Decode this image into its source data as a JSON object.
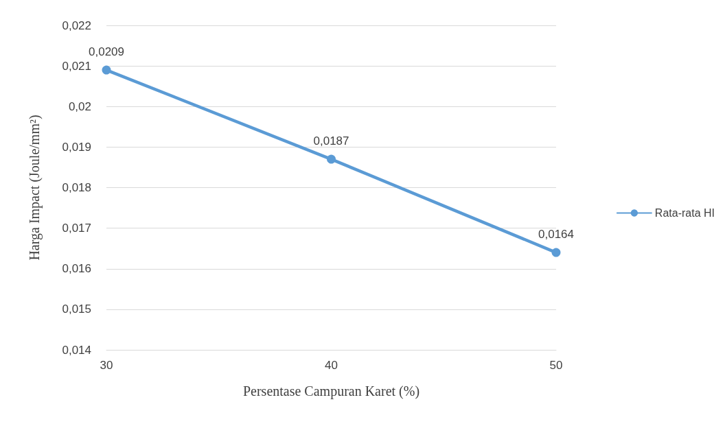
{
  "chart_data": {
    "type": "line",
    "xlabel": "Persentase Campuran Karet (%)",
    "ylabel": "Harga Impact (Joule/mm²)",
    "categories": [
      "30",
      "40",
      "50"
    ],
    "series": [
      {
        "name": "Rata-rata HI",
        "color": "#5b9bd5",
        "values": [
          0.0209,
          0.0187,
          0.0164
        ],
        "value_labels": [
          "0,0209",
          "0,0187",
          "0,0164"
        ]
      }
    ],
    "ylim": [
      0.014,
      0.022
    ],
    "yticks": [
      {
        "value": 0.014,
        "label": "0,014"
      },
      {
        "value": 0.015,
        "label": "0,015"
      },
      {
        "value": 0.016,
        "label": "0,016"
      },
      {
        "value": 0.017,
        "label": "0,017"
      },
      {
        "value": 0.018,
        "label": "0,018"
      },
      {
        "value": 0.019,
        "label": "0,019"
      },
      {
        "value": 0.02,
        "label": "0,02"
      },
      {
        "value": 0.021,
        "label": "0,021"
      },
      {
        "value": 0.022,
        "label": "0,022"
      }
    ],
    "grid": "y",
    "legend": "right",
    "marker": "circle",
    "line_style": "solid"
  }
}
